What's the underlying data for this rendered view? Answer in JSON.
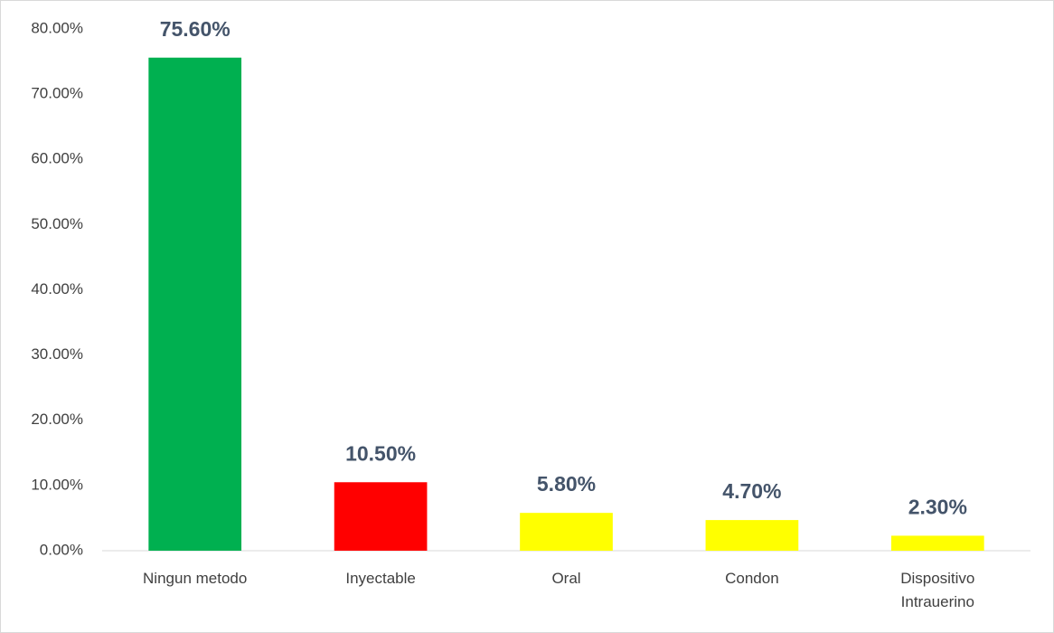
{
  "chart_data": {
    "type": "bar",
    "categories": [
      "Ningun metodo",
      "Inyectable",
      "Oral",
      "Condon",
      "Dispositivo Intrauerino"
    ],
    "values": [
      75.6,
      10.5,
      5.8,
      4.7,
      2.3
    ],
    "value_labels": [
      "75.60%",
      "10.50%",
      "5.80%",
      "4.70%",
      "2.30%"
    ],
    "colors": [
      "#00b050",
      "#ff0000",
      "#ffff00",
      "#ffff00",
      "#ffff00"
    ],
    "ylim": [
      0,
      80
    ],
    "yticks": [
      {
        "value": 0,
        "label": "0.00%"
      },
      {
        "value": 10,
        "label": "10.00%"
      },
      {
        "value": 20,
        "label": "20.00%"
      },
      {
        "value": 30,
        "label": "30.00%"
      },
      {
        "value": 40,
        "label": "40.00%"
      },
      {
        "value": 50,
        "label": "50.00%"
      },
      {
        "value": 60,
        "label": "60.00%"
      },
      {
        "value": 70,
        "label": "70.00%"
      },
      {
        "value": 80,
        "label": "80.00%"
      }
    ],
    "grid": false
  }
}
